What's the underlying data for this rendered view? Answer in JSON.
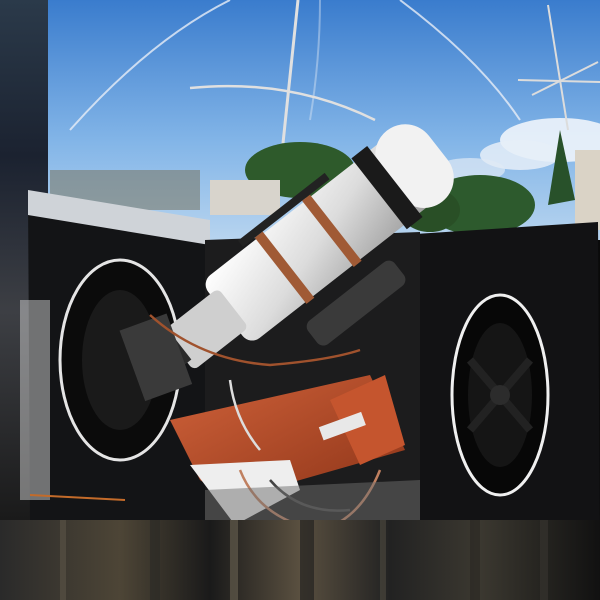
{
  "image": {
    "kind": "photograph",
    "colors": {
      "sky_top": "#3f7fcf",
      "sky_bottom": "#a9cdf0",
      "trees": "#2f5a2a",
      "dome_dark": "#0c0c0c",
      "dome_panel": "#111214",
      "telescope_white": "#e6e6e6",
      "mount_orange": "#b34a2a",
      "strap_copper": "#a05a35"
    }
  }
}
